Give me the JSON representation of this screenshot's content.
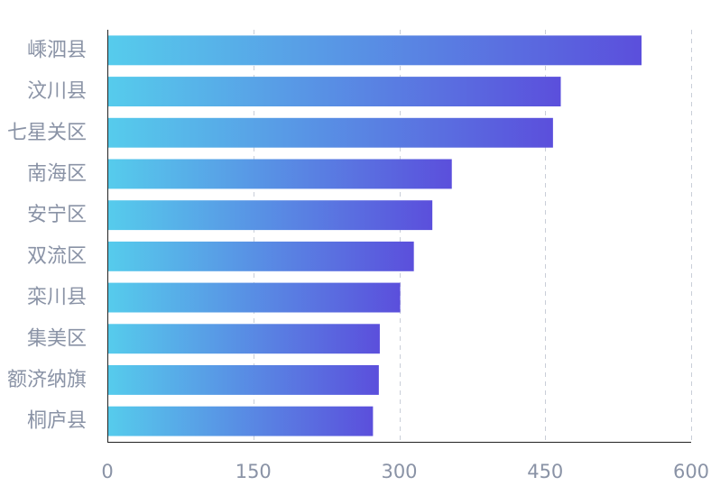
{
  "chart_data": {
    "type": "bar",
    "orientation": "horizontal",
    "categories": [
      "嵊泗县",
      "汶川县",
      "七星关区",
      "南海区",
      "安宁区",
      "双流区",
      "栾川县",
      "集美区",
      "额济纳旗",
      "桐庐县"
    ],
    "values": [
      549,
      466,
      458,
      354,
      334,
      315,
      301,
      280,
      279,
      273
    ],
    "xlim": [
      0,
      600
    ],
    "xticks": [
      0,
      150,
      300,
      450,
      600
    ],
    "grid": "vertical dashed",
    "bar_gradient": [
      "#56ccec",
      "#5b4fdc"
    ],
    "title": "",
    "xlabel": "",
    "ylabel": ""
  }
}
